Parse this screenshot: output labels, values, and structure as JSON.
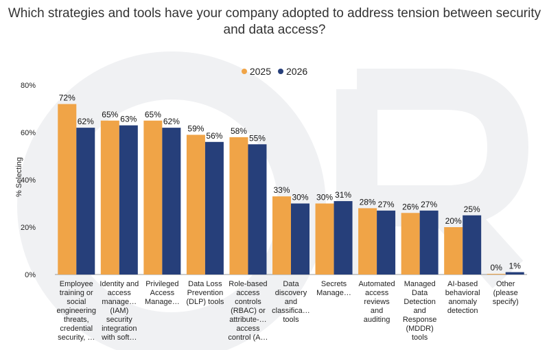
{
  "chart_data": {
    "type": "bar",
    "title": "Which strategies and tools have your company adopted to address tension between security and data access?",
    "ylabel": "% Selecting",
    "xlabel": "",
    "ylim": [
      0,
      80
    ],
    "yticks": [
      "0%",
      "20%",
      "40%",
      "60%",
      "80%"
    ],
    "legend_position": "top-center",
    "grid": false,
    "categories": [
      "Employee training or social engineering threats, credential security, …",
      "Identity and access manage… (IAM) security integration with soft…",
      "Privileged Access Manage…",
      "Data Loss Prevention (DLP) tools",
      "Role-based access controls (RBAC) or attribute-… access control (A…",
      "Data discovery and classifica… tools",
      "Secrets Manage…",
      "Automated access reviews and auditing",
      "Managed Data Detection and Response (MDDR) tools",
      "AI-based behavioral anomaly detection",
      "Other (please specify)"
    ],
    "series": [
      {
        "name": "2025",
        "color": "#F0A447",
        "values": [
          72,
          65,
          65,
          59,
          58,
          33,
          30,
          28,
          26,
          20,
          0
        ],
        "labels": [
          "72%",
          "65%",
          "65%",
          "59%",
          "58%",
          "33%",
          "30%",
          "28%",
          "26%",
          "20%",
          "0%"
        ]
      },
      {
        "name": "2026",
        "color": "#263F7A",
        "values": [
          62,
          63,
          62,
          56,
          55,
          30,
          31,
          27,
          27,
          25,
          1
        ],
        "labels": [
          "62%",
          "63%",
          "62%",
          "56%",
          "55%",
          "30%",
          "31%",
          "27%",
          "27%",
          "25%",
          "1%"
        ]
      }
    ]
  }
}
